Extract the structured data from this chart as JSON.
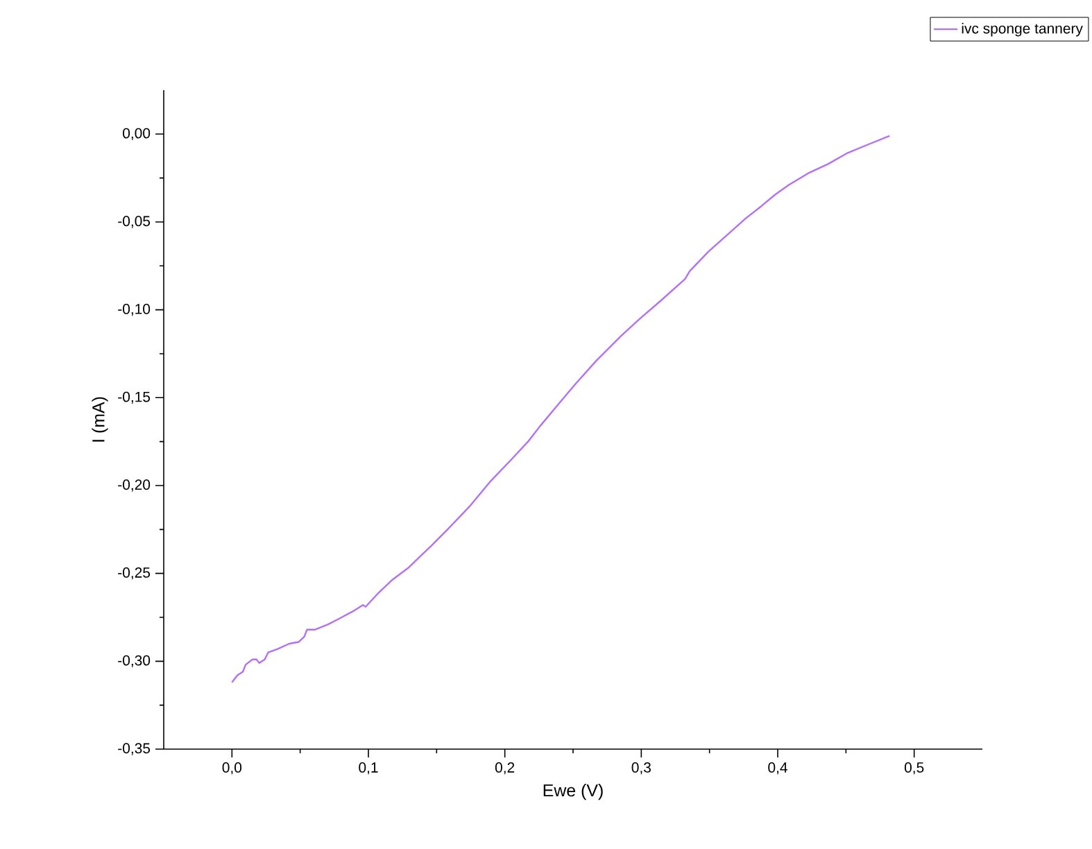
{
  "chart_data": {
    "type": "line",
    "xlabel": "Ewe (V)",
    "ylabel": "I (mA)",
    "xlim": [
      -0.05,
      0.55
    ],
    "ylim": [
      -0.35,
      0.025
    ],
    "xticks": [
      {
        "value": 0.0,
        "label": "0,0"
      },
      {
        "value": 0.1,
        "label": "0,1"
      },
      {
        "value": 0.2,
        "label": "0,2"
      },
      {
        "value": 0.3,
        "label": "0,3"
      },
      {
        "value": 0.4,
        "label": "0,4"
      },
      {
        "value": 0.5,
        "label": "0,5"
      }
    ],
    "yticks": [
      {
        "value": -0.35,
        "label": "-0,35"
      },
      {
        "value": -0.3,
        "label": "-0,30"
      },
      {
        "value": -0.25,
        "label": "-0,25"
      },
      {
        "value": -0.2,
        "label": "-0,20"
      },
      {
        "value": -0.15,
        "label": "-0,15"
      },
      {
        "value": -0.1,
        "label": "-0,10"
      },
      {
        "value": -0.05,
        "label": "-0,05"
      },
      {
        "value": 0.0,
        "label": "0,00"
      }
    ],
    "legend": "top right",
    "grid": false,
    "series": [
      {
        "name": "ivc sponge tannery",
        "color": "#b36ff7",
        "x": [
          0,
          0.004,
          0.008,
          0.01,
          0.015,
          0.018,
          0.02,
          0.024,
          0.0265,
          0.0335,
          0.042,
          0.049,
          0.053,
          0.055,
          0.061,
          0.0705,
          0.078,
          0.09,
          0.096,
          0.098,
          0.1075,
          0.117,
          0.129,
          0.137,
          0.1465,
          0.158,
          0.174,
          0.189,
          0.205,
          0.217,
          0.226,
          0.24,
          0.252,
          0.267,
          0.285,
          0.299,
          0.314,
          0.332,
          0.3355,
          0.349,
          0.365,
          0.3765,
          0.388,
          0.398,
          0.408,
          0.423,
          0.437,
          0.4505,
          0.466,
          0.482
        ],
        "values": [
          -0.312,
          -0.308,
          -0.306,
          -0.302,
          -0.299,
          -0.299,
          -0.301,
          -0.299,
          -0.295,
          -0.293,
          -0.29,
          -0.289,
          -0.286,
          -0.282,
          -0.282,
          -0.279,
          -0.276,
          -0.271,
          -0.268,
          -0.269,
          -0.261,
          -0.254,
          -0.247,
          -0.241,
          -0.234,
          -0.225,
          -0.212,
          -0.198,
          -0.185,
          -0.175,
          -0.166,
          -0.153,
          -0.142,
          -0.129,
          -0.115,
          -0.105,
          -0.095,
          -0.0825,
          -0.078,
          -0.067,
          -0.056,
          -0.048,
          -0.041,
          -0.0345,
          -0.029,
          -0.022,
          -0.017,
          -0.011,
          -0.006,
          -0.001
        ]
      }
    ]
  }
}
